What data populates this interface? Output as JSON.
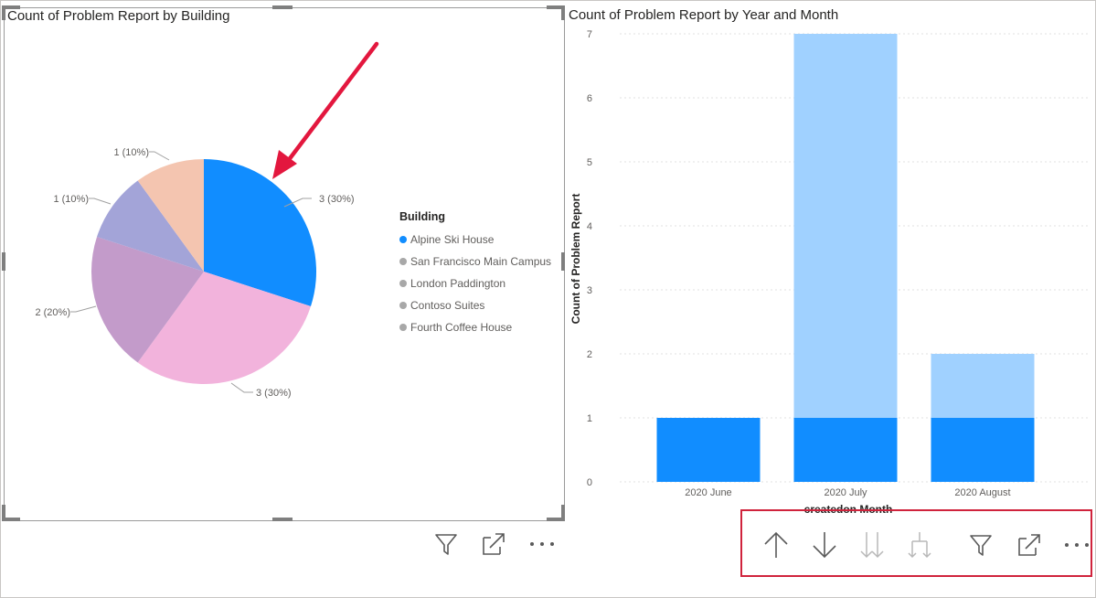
{
  "pie_visual": {
    "title": "Count of Problem Report by Building",
    "legend_title": "Building",
    "legend_items": [
      {
        "label": "Alpine Ski House",
        "color": "#118dff"
      },
      {
        "label": "San Francisco Main Campus",
        "color": "#a8a8a8"
      },
      {
        "label": "London Paddington",
        "color": "#a8a8a8"
      },
      {
        "label": "Contoso Suites",
        "color": "#a8a8a8"
      },
      {
        "label": "Fourth Coffee House",
        "color": "#a8a8a8"
      }
    ]
  },
  "bar_visual": {
    "title": "Count of Problem Report by Year and Month",
    "ylabel": "Count of Problem Report",
    "xlabel": "createdon Month"
  },
  "toolbar": {
    "icons": [
      "arrow-up-icon",
      "arrow-down-icon",
      "double-arrow-down-icon",
      "expand-hierarchy-icon",
      "filter-icon",
      "focus-mode-icon",
      "more-options-icon"
    ]
  },
  "chart_data": [
    {
      "type": "pie",
      "title": "Count of Problem Report by Building",
      "legend_title": "Building",
      "legend_position": "right",
      "slices": [
        {
          "label": "Alpine Ski House",
          "value": 3,
          "data_label": "3 (30%)",
          "color": "#118dff"
        },
        {
          "label": "San Francisco Main Campus",
          "value": 3,
          "data_label": "3 (30%)",
          "color": "#f2b3dc"
        },
        {
          "label": "London Paddington",
          "value": 2,
          "data_label": "2 (20%)",
          "color": "#c39bca"
        },
        {
          "label": "Contoso Suites",
          "value": 1,
          "data_label": "1 (10%)",
          "color": "#a3a4d8"
        },
        {
          "label": "Fourth Coffee House",
          "value": 1,
          "data_label": "1 (10%)",
          "color": "#f4c5b0"
        }
      ]
    },
    {
      "type": "bar",
      "stacked": true,
      "title": "Count of Problem Report by Year and Month",
      "xlabel": "createdon Month",
      "ylabel": "Count of Problem Report",
      "categories": [
        "2020 June",
        "2020 July",
        "2020 August"
      ],
      "series": [
        {
          "values": [
            1,
            1,
            1
          ],
          "color": "#118dff"
        },
        {
          "values": [
            0,
            6,
            1
          ],
          "color": "#a0d1ff"
        }
      ],
      "ylim": [
        0,
        7
      ],
      "yticks": [
        "0",
        "1",
        "2",
        "3",
        "4",
        "5",
        "6",
        "7"
      ],
      "grid": true
    }
  ]
}
